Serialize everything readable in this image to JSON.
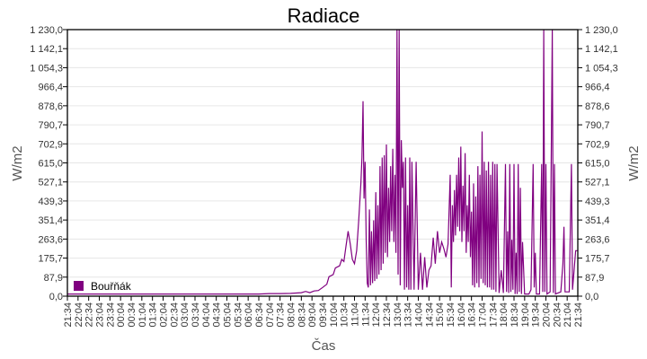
{
  "chart_data": {
    "type": "line",
    "title": "Radiace",
    "xlabel": "Čas",
    "ylabel": "W/m2",
    "ylabel_right": "W/m2",
    "ylim": [
      0,
      1230
    ],
    "grid": true,
    "legend_position": "bottom-left inside plot",
    "y_ticks": [
      "0,0",
      "87,9",
      "175,7",
      "263,6",
      "351,4",
      "439,3",
      "527,1",
      "615,0",
      "702,9",
      "790,7",
      "878,6",
      "966,4",
      "1 054,3",
      "1 142,1",
      "1 230,0"
    ],
    "x_ticks": [
      "21:34",
      "22:04",
      "22:34",
      "23:04",
      "23:34",
      "00:04",
      "00:34",
      "01:04",
      "01:34",
      "02:04",
      "02:34",
      "03:04",
      "03:34",
      "04:04",
      "04:34",
      "05:04",
      "05:34",
      "06:04",
      "06:34",
      "07:04",
      "07:34",
      "08:04",
      "08:34",
      "09:04",
      "09:34",
      "10:04",
      "10:34",
      "11:04",
      "11:34",
      "12:04",
      "12:34",
      "13:04",
      "13:34",
      "14:04",
      "14:34",
      "15:04",
      "15:34",
      "16:04",
      "16:34",
      "17:04",
      "17:34",
      "18:04",
      "18:34",
      "19:04",
      "19:34",
      "20:04",
      "20:34",
      "21:04",
      "21:34"
    ],
    "series": [
      {
        "name": "Bouřňák",
        "color": "#800080",
        "points_note": "x = hours since 21:34 (0..24), y = W/m2 (approximate readings)",
        "points": [
          [
            0,
            10
          ],
          [
            1,
            10
          ],
          [
            2,
            10
          ],
          [
            3,
            10
          ],
          [
            4,
            10
          ],
          [
            5,
            10
          ],
          [
            6,
            10
          ],
          [
            7,
            10
          ],
          [
            8,
            10
          ],
          [
            9,
            10
          ],
          [
            9.5,
            12
          ],
          [
            10,
            12
          ],
          [
            10.5,
            13
          ],
          [
            11,
            16
          ],
          [
            11.2,
            22
          ],
          [
            11.4,
            16
          ],
          [
            11.6,
            24
          ],
          [
            11.8,
            26
          ],
          [
            12,
            40
          ],
          [
            12.2,
            55
          ],
          [
            12.3,
            90
          ],
          [
            12.5,
            100
          ],
          [
            12.6,
            130
          ],
          [
            12.8,
            140
          ],
          [
            12.9,
            170
          ],
          [
            13,
            160
          ],
          [
            13.1,
            230
          ],
          [
            13.2,
            300
          ],
          [
            13.3,
            240
          ],
          [
            13.4,
            170
          ],
          [
            13.5,
            150
          ],
          [
            13.6,
            210
          ],
          [
            13.7,
            350
          ],
          [
            13.8,
            520
          ],
          [
            13.85,
            640
          ],
          [
            13.9,
            900
          ],
          [
            13.95,
            450
          ],
          [
            14.0,
            620
          ],
          [
            14.05,
            260
          ],
          [
            14.1,
            60
          ],
          [
            14.15,
            40
          ],
          [
            14.2,
            400
          ],
          [
            14.25,
            50
          ],
          [
            14.3,
            300
          ],
          [
            14.35,
            60
          ],
          [
            14.4,
            350
          ],
          [
            14.45,
            70
          ],
          [
            14.5,
            480
          ],
          [
            14.55,
            80
          ],
          [
            14.6,
            420
          ],
          [
            14.65,
            100
          ],
          [
            14.7,
            600
          ],
          [
            14.75,
            120
          ],
          [
            14.8,
            640
          ],
          [
            14.85,
            150
          ],
          [
            14.9,
            650
          ],
          [
            14.95,
            200
          ],
          [
            15.0,
            700
          ],
          [
            15.05,
            180
          ],
          [
            15.1,
            500
          ],
          [
            15.15,
            250
          ],
          [
            15.2,
            600
          ],
          [
            15.25,
            300
          ],
          [
            15.3,
            680
          ],
          [
            15.35,
            250
          ],
          [
            15.4,
            560
          ],
          [
            15.45,
            200
          ],
          [
            15.5,
            1230
          ],
          [
            15.55,
            100
          ],
          [
            15.6,
            1230
          ],
          [
            15.65,
            50
          ],
          [
            15.7,
            720
          ],
          [
            15.75,
            500
          ],
          [
            15.8,
            620
          ],
          [
            15.85,
            30
          ],
          [
            15.9,
            640
          ],
          [
            15.95,
            40
          ],
          [
            16.0,
            420
          ],
          [
            16.05,
            30
          ],
          [
            16.1,
            640
          ],
          [
            16.15,
            30
          ],
          [
            16.2,
            620
          ],
          [
            16.3,
            30
          ],
          [
            16.4,
            620
          ],
          [
            16.5,
            30
          ],
          [
            16.6,
            200
          ],
          [
            16.7,
            30
          ],
          [
            16.8,
            180
          ],
          [
            16.9,
            40
          ],
          [
            17.0,
            120
          ],
          [
            17.1,
            140
          ],
          [
            17.2,
            270
          ],
          [
            17.3,
            150
          ],
          [
            17.4,
            300
          ],
          [
            17.5,
            200
          ],
          [
            17.6,
            250
          ],
          [
            17.7,
            220
          ],
          [
            17.8,
            180
          ],
          [
            17.9,
            240
          ],
          [
            18.0,
            560
          ],
          [
            18.05,
            40
          ],
          [
            18.1,
            420
          ],
          [
            18.15,
            250
          ],
          [
            18.2,
            490
          ],
          [
            18.25,
            280
          ],
          [
            18.3,
            560
          ],
          [
            18.35,
            320
          ],
          [
            18.4,
            640
          ],
          [
            18.45,
            300
          ],
          [
            18.5,
            690
          ],
          [
            18.55,
            250
          ],
          [
            18.6,
            510
          ],
          [
            18.65,
            300
          ],
          [
            18.7,
            660
          ],
          [
            18.75,
            200
          ],
          [
            18.8,
            420
          ],
          [
            18.85,
            250
          ],
          [
            18.9,
            560
          ],
          [
            18.95,
            180
          ],
          [
            19.0,
            390
          ],
          [
            19.05,
            50
          ],
          [
            19.1,
            520
          ],
          [
            19.15,
            40
          ],
          [
            19.2,
            460
          ],
          [
            19.25,
            60
          ],
          [
            19.3,
            600
          ],
          [
            19.35,
            40
          ],
          [
            19.4,
            560
          ],
          [
            19.45,
            80
          ],
          [
            19.5,
            760
          ],
          [
            19.55,
            60
          ],
          [
            19.6,
            620
          ],
          [
            19.65,
            50
          ],
          [
            19.7,
            580
          ],
          [
            19.75,
            40
          ],
          [
            19.8,
            620
          ],
          [
            19.85,
            40
          ],
          [
            19.9,
            560
          ],
          [
            19.95,
            30
          ],
          [
            20.0,
            620
          ],
          [
            20.05,
            30
          ],
          [
            20.1,
            610
          ],
          [
            20.15,
            20
          ],
          [
            20.2,
            610
          ],
          [
            20.3,
            15
          ],
          [
            20.4,
            120
          ],
          [
            20.5,
            15
          ],
          [
            20.6,
            610
          ],
          [
            20.65,
            20
          ],
          [
            20.7,
            300
          ],
          [
            20.75,
            15
          ],
          [
            20.8,
            610
          ],
          [
            20.85,
            20
          ],
          [
            20.9,
            260
          ],
          [
            20.95,
            30
          ],
          [
            21.0,
            610
          ],
          [
            21.05,
            10
          ],
          [
            21.1,
            200
          ],
          [
            21.15,
            10
          ],
          [
            21.2,
            610
          ],
          [
            21.25,
            20
          ],
          [
            21.3,
            500
          ],
          [
            21.35,
            10
          ],
          [
            21.4,
            250
          ],
          [
            21.5,
            10
          ],
          [
            21.7,
            10
          ],
          [
            21.8,
            30
          ],
          [
            21.9,
            610
          ],
          [
            21.95,
            40
          ],
          [
            22.0,
            200
          ],
          [
            22.05,
            10
          ],
          [
            22.2,
            10
          ],
          [
            22.3,
            610
          ],
          [
            22.35,
            20
          ],
          [
            22.4,
            1230
          ],
          [
            22.45,
            20
          ],
          [
            22.5,
            610
          ],
          [
            22.55,
            10
          ],
          [
            22.7,
            20
          ],
          [
            22.8,
            1230
          ],
          [
            22.85,
            15
          ],
          [
            22.9,
            610
          ],
          [
            22.95,
            10
          ],
          [
            23.2,
            20
          ],
          [
            23.3,
            150
          ],
          [
            23.35,
            320
          ],
          [
            23.4,
            20
          ],
          [
            23.6,
            20
          ],
          [
            23.7,
            610
          ],
          [
            23.75,
            30
          ],
          [
            23.8,
            90
          ],
          [
            23.9,
            210
          ],
          [
            24.0,
            210
          ]
        ]
      }
    ]
  }
}
